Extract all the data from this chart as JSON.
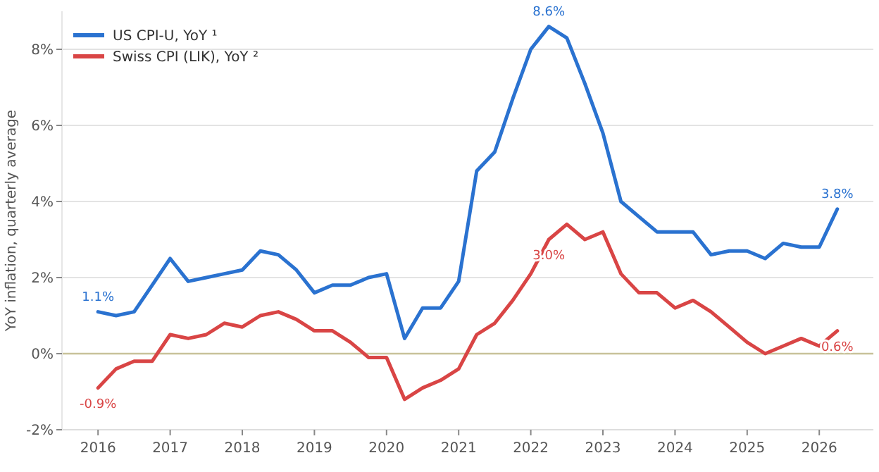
{
  "chart_data": {
    "type": "line",
    "ylabel": "YoY inflation, quarterly average",
    "x": [
      2016,
      2016.25,
      2016.5,
      2016.75,
      2017,
      2017.25,
      2017.5,
      2017.75,
      2018,
      2018.25,
      2018.5,
      2018.75,
      2019,
      2019.25,
      2019.5,
      2019.75,
      2020,
      2020.25,
      2020.5,
      2020.75,
      2021,
      2021.25,
      2021.5,
      2021.75,
      2022,
      2022.25,
      2022.5,
      2022.75,
      2023,
      2023.25,
      2023.5,
      2023.75,
      2024,
      2024.25,
      2024.5,
      2024.75,
      2025,
      2025.25,
      2025.5,
      2025.75,
      2026,
      2026.25
    ],
    "series": [
      {
        "name": "US CPI-U, YoY ¹",
        "color": "#2a72d0",
        "values": [
          1.1,
          1.0,
          1.1,
          1.8,
          2.5,
          1.9,
          2.0,
          2.1,
          2.2,
          2.7,
          2.6,
          2.2,
          1.6,
          1.8,
          1.8,
          2.0,
          2.1,
          0.4,
          1.2,
          1.2,
          1.9,
          4.8,
          5.3,
          6.7,
          8.0,
          8.6,
          8.3,
          7.1,
          5.8,
          4.0,
          3.6,
          3.2,
          3.2,
          3.2,
          2.6,
          2.7,
          2.7,
          2.5,
          2.9,
          2.8,
          2.8,
          3.8
        ]
      },
      {
        "name": "Swiss CPI (LIK), YoY ²",
        "color": "#d94545",
        "values": [
          -0.9,
          -0.4,
          -0.2,
          -0.2,
          0.5,
          0.4,
          0.5,
          0.8,
          0.7,
          1.0,
          1.1,
          0.9,
          0.6,
          0.6,
          0.3,
          -0.1,
          -0.1,
          -1.2,
          -0.9,
          -0.7,
          -0.4,
          0.5,
          0.8,
          1.4,
          2.1,
          3.0,
          3.4,
          3.0,
          3.2,
          2.1,
          1.6,
          1.6,
          1.2,
          1.4,
          1.1,
          0.7,
          0.3,
          0.0,
          0.2,
          0.4,
          0.2,
          0.6
        ]
      }
    ],
    "xlim": [
      2015.5,
      2026.75
    ],
    "xticks": [
      2016,
      2017,
      2018,
      2019,
      2020,
      2021,
      2022,
      2023,
      2024,
      2025,
      2026
    ],
    "ylim": [
      -2,
      9
    ],
    "yticks": [
      {
        "value": -2,
        "label": "-2%"
      },
      {
        "value": 0,
        "label": "0%"
      },
      {
        "value": 2,
        "label": "2%"
      },
      {
        "value": 4,
        "label": "4%"
      },
      {
        "value": 6,
        "label": "6%"
      },
      {
        "value": 8,
        "label": "8%"
      }
    ],
    "grid": "y",
    "legend": "top left",
    "line_style": "solid",
    "marker": "none",
    "ref_lines": [
      {
        "axis": "y",
        "value": 0,
        "label": null,
        "color": "#c8c29a"
      }
    ],
    "annotations": [
      {
        "text": "1.1%",
        "x": 2016,
        "y": 1.1
      },
      {
        "text": "-0.9%",
        "x": 2016,
        "y": -0.9
      },
      {
        "text": "8.6%",
        "x": 2022.25,
        "y": 8.6
      },
      {
        "text": "3.0%",
        "x": 2022.25,
        "y": 3.0
      },
      {
        "text": "3.8%",
        "x": 2026.25,
        "y": 3.8
      },
      {
        "text": "0.6%",
        "x": 2026.25,
        "y": 0.6
      }
    ]
  }
}
